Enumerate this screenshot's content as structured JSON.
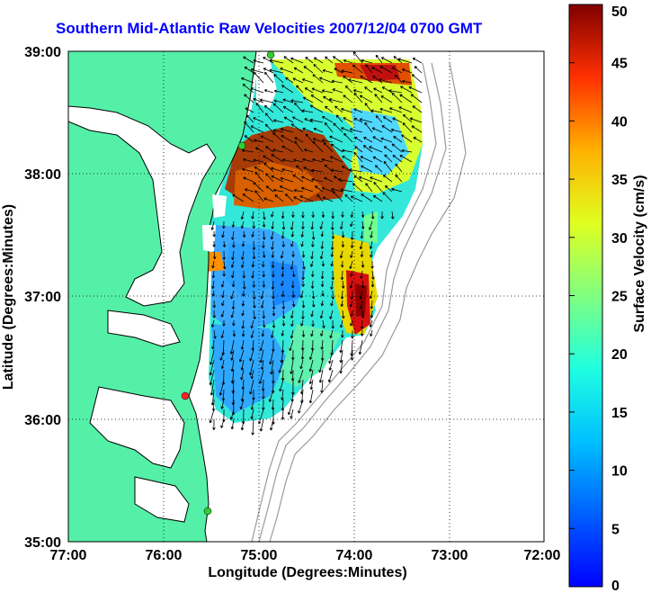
{
  "title": "Southern Mid-Atlantic Raw Velocities 2007/12/04 0700 GMT",
  "map": {
    "xlabel": "Longitude (Degrees:Minutes)",
    "ylabel": "Latitude (Degrees:Minutes)",
    "x_ticks": [
      "77:00",
      "76:00",
      "75:00",
      "74:00",
      "73:00",
      "72:00"
    ],
    "y_ticks": [
      "39:00",
      "38:00",
      "37:00",
      "36:00",
      "35:00"
    ],
    "xlim": [
      -77,
      -72
    ],
    "ylim": [
      35,
      39
    ],
    "grid": true,
    "colors": {
      "land": "#55f0a8",
      "coast": "#000000",
      "isobath": "#9a9a9a",
      "station": "#33cc33",
      "station_alt": "#ff2222"
    }
  },
  "colorbar": {
    "label": "Surface Velocity (cm/s)",
    "ticks": [
      "0",
      "5",
      "10",
      "15",
      "20",
      "25",
      "30",
      "35",
      "40",
      "45",
      "50"
    ],
    "range": [
      0,
      50
    ],
    "colormap": "jet"
  }
}
